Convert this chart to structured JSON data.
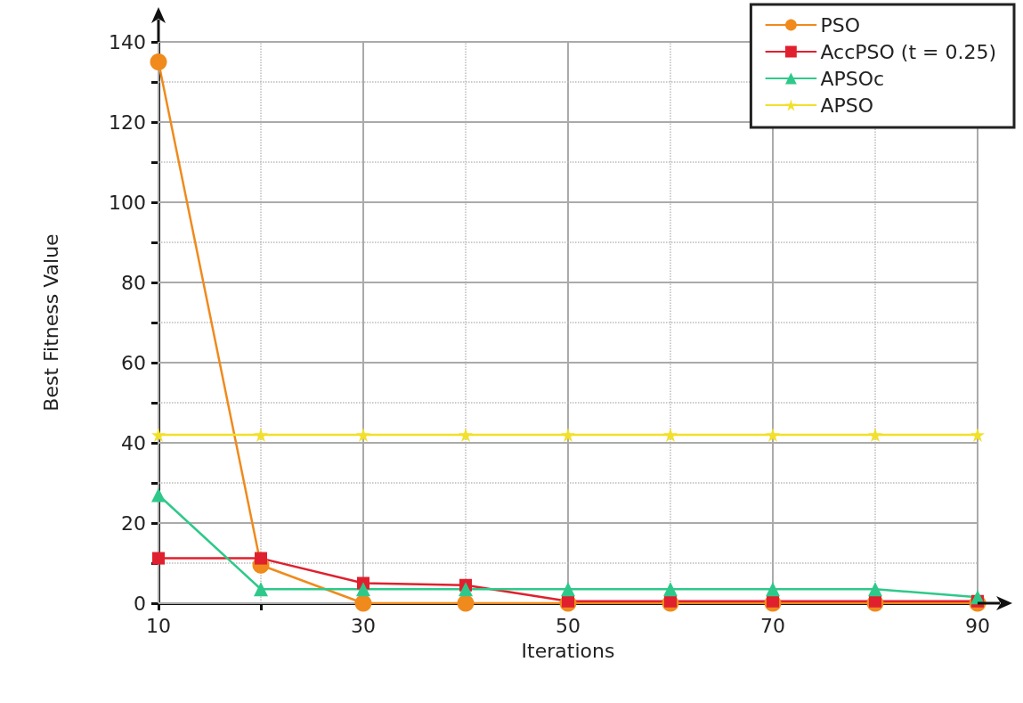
{
  "chart_data": {
    "type": "line",
    "xlabel": "Iterations",
    "ylabel": "Best Fitness Value",
    "x": [
      10,
      20,
      30,
      40,
      50,
      60,
      70,
      80,
      90
    ],
    "series": [
      {
        "name": "PSO",
        "color": "#f08a1c",
        "marker": "circle",
        "values": [
          135,
          9.5,
          0,
          0,
          0,
          0,
          0,
          0,
          0
        ]
      },
      {
        "name": "AccPSO (t = 0.25)",
        "color": "#e0202e",
        "marker": "square",
        "values": [
          11.2,
          11.2,
          5,
          4.5,
          0.5,
          0.5,
          0.5,
          0.5,
          0.5
        ]
      },
      {
        "name": "APSOc",
        "color": "#2ec98a",
        "marker": "triangle",
        "values": [
          27,
          3.5,
          3.5,
          3.5,
          3.5,
          3.5,
          3.5,
          3.5,
          1.5
        ]
      },
      {
        "name": "APSO",
        "color": "#f2e02a",
        "marker": "star",
        "values": [
          42,
          42,
          42,
          42,
          42,
          42,
          42,
          42,
          42
        ]
      }
    ],
    "xlim": [
      10,
      90
    ],
    "xticks": [
      10,
      {
        "value": 20,
        "label": null
      },
      30,
      {
        "value": 40,
        "label": null
      },
      50,
      {
        "value": 60,
        "label": null
      },
      70,
      {
        "value": 80,
        "label": null
      },
      90
    ],
    "ylim": [
      0,
      140
    ],
    "yticks": [
      0,
      {
        "value": 10,
        "label": null
      },
      20,
      {
        "value": 30,
        "label": null
      },
      40,
      {
        "value": 50,
        "label": null
      },
      60,
      {
        "value": 70,
        "label": null
      },
      80,
      {
        "value": 90,
        "label": null
      },
      100,
      {
        "value": 110,
        "label": null
      },
      120,
      {
        "value": 130,
        "label": null
      },
      140
    ],
    "grid": true,
    "legend": "top right",
    "line_style": "solid"
  }
}
